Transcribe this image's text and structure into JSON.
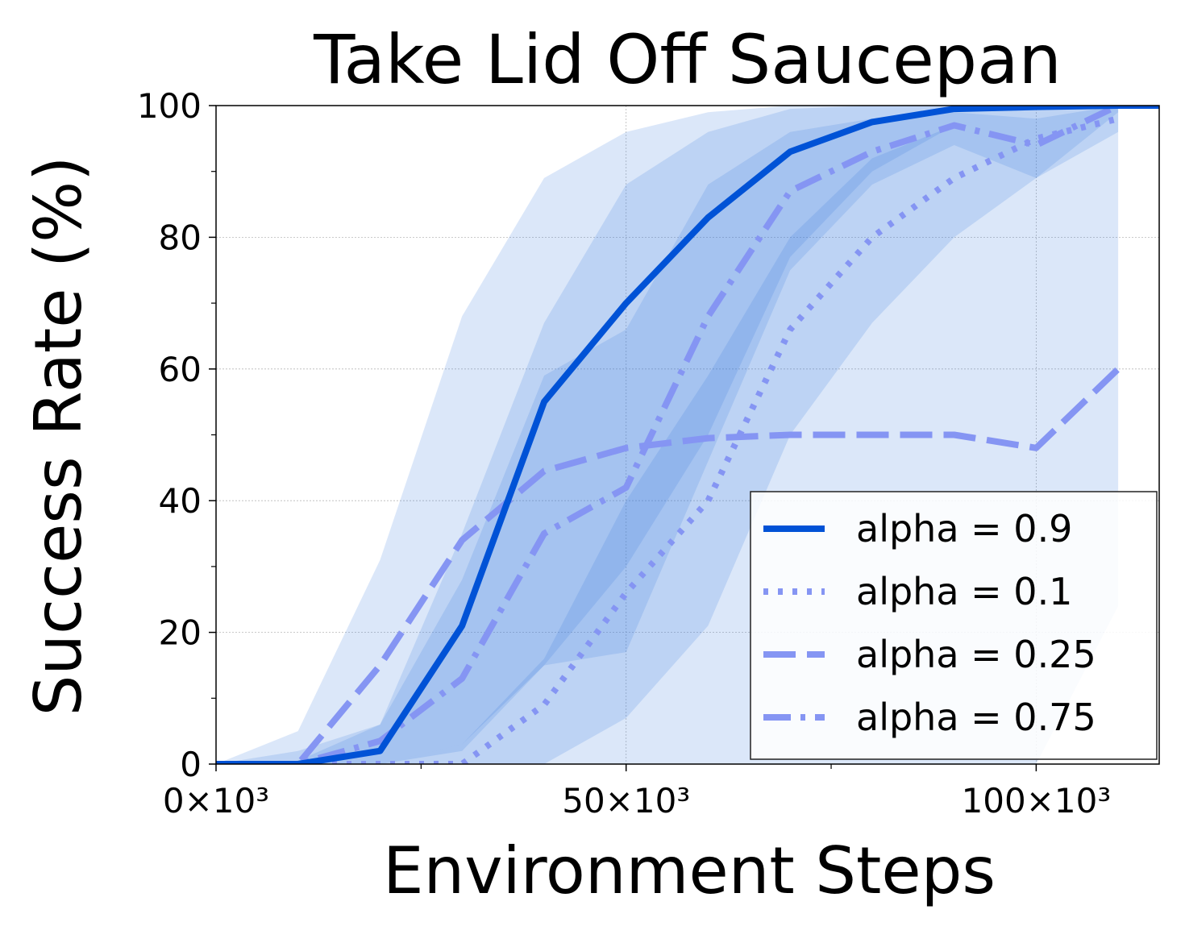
{
  "chart_data": {
    "type": "line",
    "title": "Take Lid Off Saucepan",
    "xlabel": "Environment Steps",
    "ylabel": "Success Rate (%)",
    "xlim": [
      0,
      115000
    ],
    "ylim": [
      0,
      100
    ],
    "x_ticks": [
      {
        "value": 0,
        "label": "0×10³"
      },
      {
        "value": 50000,
        "label": "50×10³"
      },
      {
        "value": 100000,
        "label": "100×10³"
      }
    ],
    "x_minor_ticks": [
      25000,
      75000
    ],
    "y_ticks": [
      {
        "value": 0,
        "label": "0"
      },
      {
        "value": 20,
        "label": "20"
      },
      {
        "value": 40,
        "label": "40"
      },
      {
        "value": 60,
        "label": "60"
      },
      {
        "value": 80,
        "label": "80"
      },
      {
        "value": 100,
        "label": "100"
      }
    ],
    "y_minor_ticks": [
      10,
      30,
      50,
      70,
      90
    ],
    "grid": true,
    "legend_position": "bottom-right",
    "series": [
      {
        "name": "alpha = 0.9",
        "style": "solid",
        "color": "#0052d6",
        "x": [
          0,
          10000,
          20000,
          30000,
          40000,
          50000,
          60000,
          70000,
          80000,
          90000,
          100000,
          110000,
          115000
        ],
        "y": [
          0,
          0,
          2,
          21,
          55,
          70,
          83,
          93,
          97.5,
          99.5,
          99.8,
          100,
          100
        ],
        "band_lower": [
          0,
          0,
          0,
          3,
          15,
          30,
          50,
          77,
          90,
          97,
          99.5,
          99.8,
          99.8
        ],
        "band_upper": [
          0,
          0.5,
          6,
          35,
          67,
          88,
          96,
          99.5,
          100,
          100,
          100,
          100,
          100
        ]
      },
      {
        "name": "alpha = 0.1",
        "style": "dotted",
        "color": "#8595f3",
        "x": [
          0,
          10000,
          20000,
          30000,
          40000,
          50000,
          60000,
          70000,
          80000,
          90000,
          100000,
          110000
        ],
        "y": [
          0,
          0,
          0,
          0,
          9,
          26,
          40,
          66,
          80,
          89,
          95,
          98
        ],
        "band_lower": [
          0,
          0,
          0,
          0,
          0,
          7,
          21,
          50,
          67,
          80,
          89,
          96
        ],
        "band_upper": [
          0,
          0,
          0,
          3,
          16,
          40,
          59,
          80,
          92,
          97,
          99.5,
          100
        ]
      },
      {
        "name": "alpha = 0.25",
        "style": "long-dash",
        "color": "#8595f3",
        "x": [
          0,
          10000,
          20000,
          30000,
          40000,
          50000,
          60000,
          70000,
          80000,
          90000,
          100000,
          110000
        ],
        "y": [
          0,
          0,
          15,
          34,
          44.5,
          48,
          49.5,
          50,
          50,
          50,
          48,
          60
        ],
        "band_lower": [
          0,
          0,
          0,
          0,
          0,
          0,
          0,
          0,
          0,
          0,
          0,
          24
        ],
        "band_upper": [
          0,
          5,
          31,
          68,
          89,
          96,
          99,
          100,
          100,
          100,
          100,
          100
        ]
      },
      {
        "name": "alpha = 0.75",
        "style": "dash-dot",
        "color": "#8595f3",
        "x": [
          0,
          10000,
          20000,
          30000,
          40000,
          50000,
          60000,
          70000,
          80000,
          90000,
          100000,
          110000
        ],
        "y": [
          0,
          0,
          3.5,
          13,
          35,
          42,
          68,
          87,
          93,
          97,
          94,
          100
        ],
        "band_lower": [
          0,
          0,
          0,
          2,
          15,
          17,
          46,
          75,
          88,
          94,
          89,
          99
        ],
        "band_upper": [
          0,
          2,
          6,
          28,
          59,
          66,
          88,
          96,
          98,
          99,
          98,
          100
        ]
      }
    ]
  }
}
